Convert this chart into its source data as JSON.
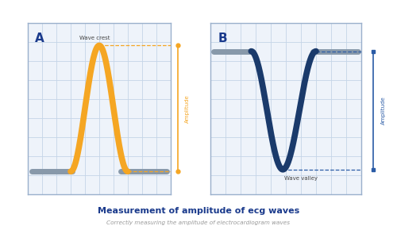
{
  "title": "Measurement of amplitude of ecg waves",
  "subtitle": "Correctly measuring the amplitude of electrocardiogram waves",
  "title_color": "#1a3a8c",
  "subtitle_color": "#999999",
  "background_color": "#ffffff",
  "grid_color": "#c5d5e8",
  "panel_bg": "#eef3fa",
  "panel_border": "#9ab0cc",
  "label_A": "A",
  "label_B": "B",
  "wave_crest_label": "Wave crest",
  "wave_valley_label": "Wave valley",
  "amplitude_label": "Amplitude",
  "orange_color": "#F5A623",
  "blue_wave_color": "#1a3a6b",
  "baseline_color": "#8899aa",
  "arrow_color_A": "#F5A623",
  "arrow_color_B": "#2a5ba6",
  "dot_color_A": "#F5A623",
  "dot_color_B": "#2a5ba6",
  "annot_color": "#444444"
}
